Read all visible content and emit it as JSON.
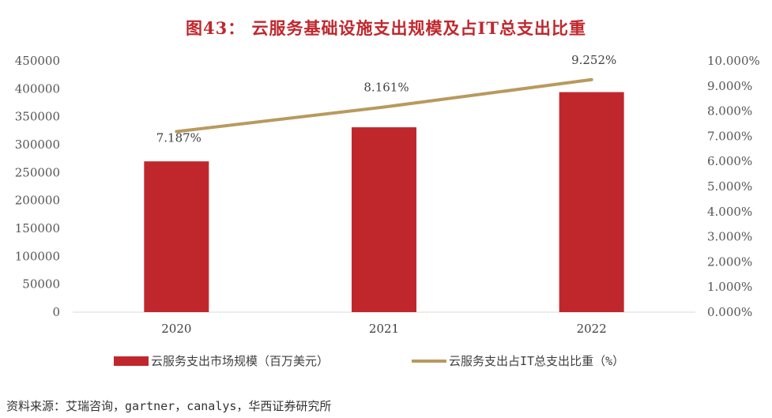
{
  "title": "图43： 云服务基础设施支出规模及占IT总支出比重",
  "source": "资料来源：艾瑞咨询，gartner，canalys，华西证券研究所",
  "colors": {
    "bar": "#c0272d",
    "line": "#b89a5e",
    "title": "#c0272d"
  },
  "chart_data": {
    "type": "bar",
    "categories": [
      "2020",
      "2021",
      "2022"
    ],
    "series": [
      {
        "name": "云服务支出市场规模（百万美元）",
        "type": "bar",
        "axis": "left",
        "values": [
          270000,
          331000,
          394000
        ]
      },
      {
        "name": "云服务支出占IT总支出比重（%）",
        "type": "line",
        "axis": "right",
        "values": [
          7.187,
          8.161,
          9.252
        ],
        "labels": [
          "7.187%",
          "8.161%",
          "9.252%"
        ]
      }
    ],
    "y_left": {
      "lim": [
        0,
        450000
      ],
      "ticks": [
        "0",
        "50000",
        "100000",
        "150000",
        "200000",
        "250000",
        "300000",
        "350000",
        "400000",
        "450000"
      ]
    },
    "y_right": {
      "lim": [
        0,
        10
      ],
      "ticks": [
        "0.000%",
        "1.000%",
        "2.000%",
        "3.000%",
        "4.000%",
        "5.000%",
        "6.000%",
        "7.000%",
        "8.000%",
        "9.000%",
        "10.000%"
      ]
    },
    "legend": "bottom",
    "grid": false
  }
}
